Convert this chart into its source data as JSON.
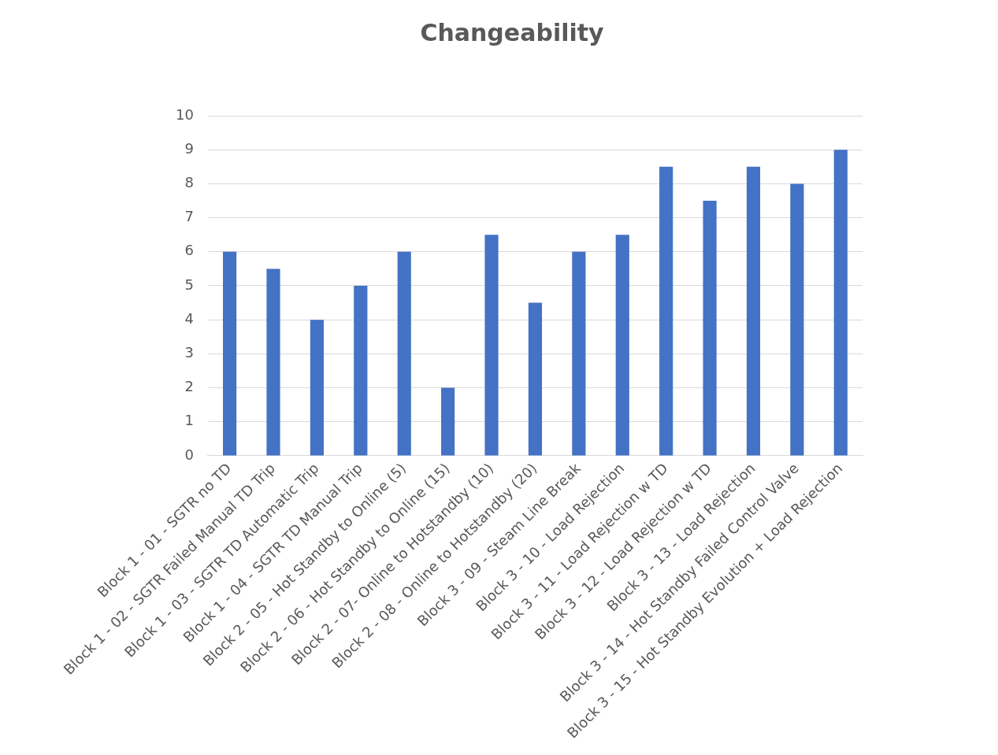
{
  "chart_data": {
    "type": "bar",
    "title": "Changeability",
    "categories": [
      "Block 1 - 01 - SGTR no TD",
      "Block 1 - 02 - SGTR Failed Manual TD Trip",
      "Block 1 - 03 - SGTR TD Automatic Trip",
      "Block 1 - 04 - SGTR TD Manual Trip",
      "Block 2 - 05 - Hot Standby to Online (5)",
      "Block 2 - 06 - Hot Standby to Online (15)",
      "Block 2 - 07- Online to Hotstandby (10)",
      "Block 2 - 08 - Online to Hotstandby (20)",
      "Block 3 - 09 - Steam Line Break",
      "Block 3 - 10 - Load Rejection",
      "Block 3 - 11 - Load Rejection w TD",
      "Block 3 - 12 - Load Rejection w TD",
      "Block 3 - 13 - Load Rejection",
      "Block 3 - 14 - Hot Standby Failed Control Valve",
      "Block 3 - 15 - Hot Standby Evolution + Load Rejection"
    ],
    "values": [
      6,
      5.5,
      4,
      5,
      6,
      2,
      6.5,
      4.5,
      6,
      6.5,
      8.5,
      7.5,
      8.5,
      8,
      9
    ],
    "color": "#4472c4",
    "ylim": [
      0,
      10
    ],
    "yticks": [
      0,
      1,
      2,
      3,
      4,
      5,
      6,
      7,
      8,
      9,
      10
    ],
    "grid": "y"
  }
}
